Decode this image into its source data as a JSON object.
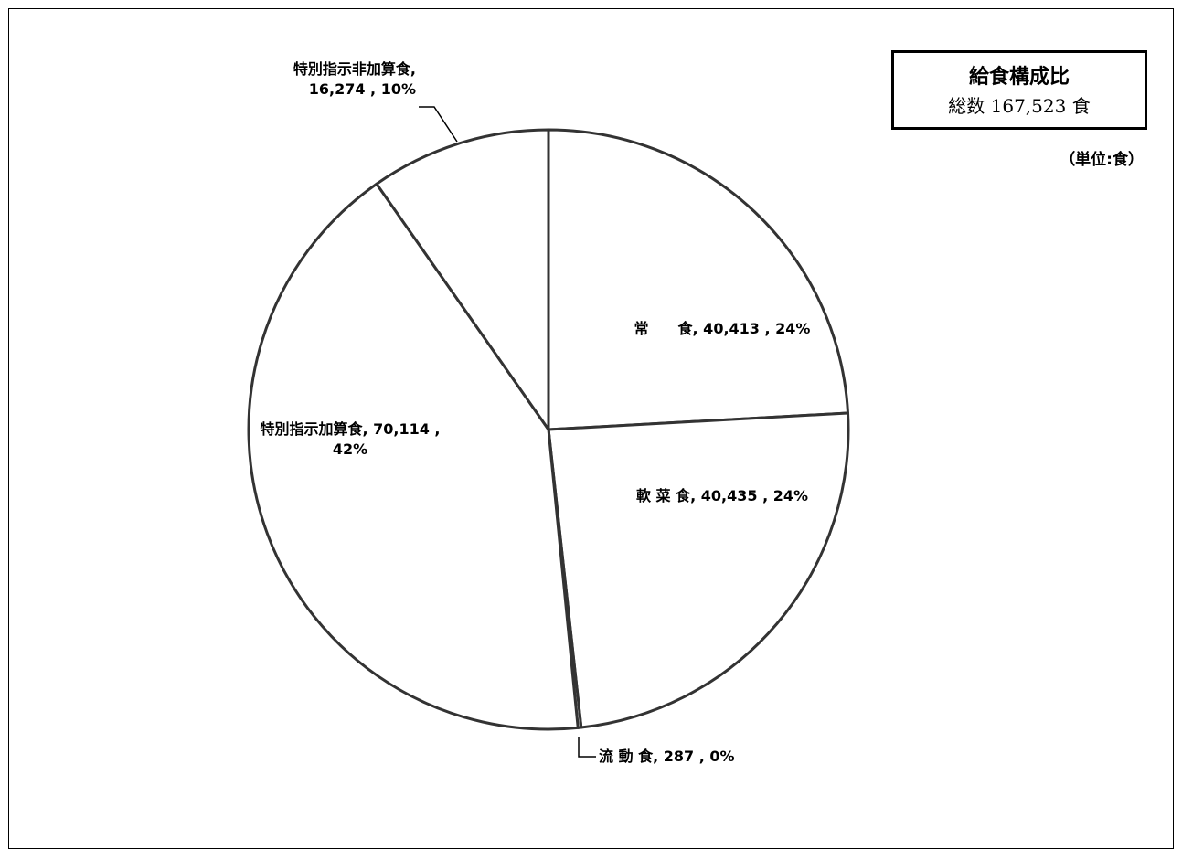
{
  "chart_data": {
    "type": "pie",
    "title": "給食構成比",
    "subtitle": "総数 167,523 食",
    "unit_note": "（単位:食）",
    "slices": [
      {
        "name": "常　　食",
        "value": 40413,
        "percent": 24,
        "label_lines": [
          "常　　食, 40,413 , 24%"
        ]
      },
      {
        "name": "軟 菜 食",
        "value": 40435,
        "percent": 24,
        "label_lines": [
          "軟 菜 食, 40,435 , 24%"
        ]
      },
      {
        "name": "流 動 食",
        "value": 287,
        "percent": 0,
        "label_lines": [
          "流 動 食, 287 , 0%"
        ]
      },
      {
        "name": "特別指示加算食",
        "value": 70114,
        "percent": 42,
        "label_lines": [
          "特別指示加算食, 70,114 ,",
          "42%"
        ]
      },
      {
        "name": "特別指示非加算食",
        "value": 16274,
        "percent": 10,
        "label_lines": [
          "特別指示非加算食,",
          "16,274 , 10%"
        ]
      }
    ],
    "start_angle": "12 o'clock",
    "direction": "clockwise",
    "fill": "#ffffff",
    "stroke": "#333333"
  }
}
